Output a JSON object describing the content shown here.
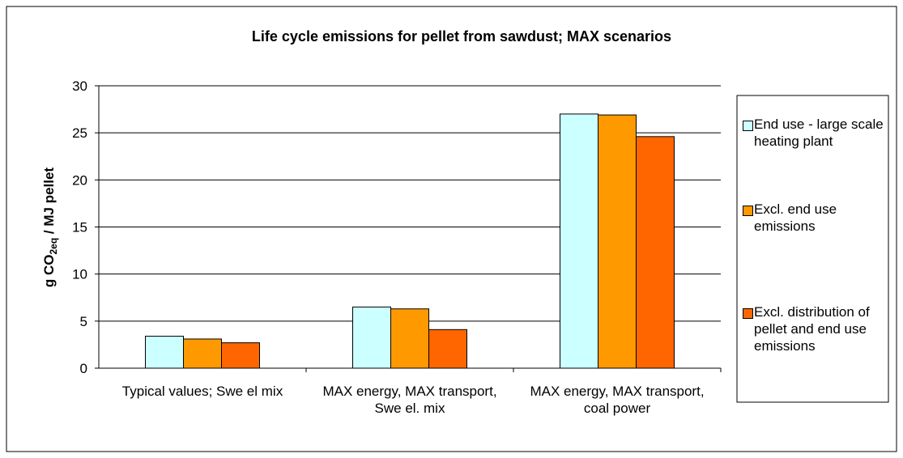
{
  "chart_data": {
    "type": "bar",
    "title": "Life cycle emissions for pellet from sawdust; MAX scenarios",
    "ylabel_parts": [
      "g CO",
      "2eq",
      " / MJ pellet"
    ],
    "categories": [
      "Typical values; Swe el mix",
      "MAX energy, MAX transport, Swe el. mix",
      "MAX energy, MAX transport, coal power"
    ],
    "series": [
      {
        "name": "End use - large scale heating plant",
        "color": "#ccffff",
        "values": [
          3.4,
          6.5,
          27.0
        ]
      },
      {
        "name": "Excl. end use emissions",
        "color": "#ff9900",
        "values": [
          3.1,
          6.3,
          26.9
        ]
      },
      {
        "name": "Excl. distribution of pellet and end use emissions",
        "color": "#ff6600",
        "values": [
          2.7,
          4.1,
          24.6
        ]
      }
    ],
    "ylim": [
      0,
      30
    ],
    "yticks": [
      0,
      5,
      10,
      15,
      20,
      25,
      30
    ],
    "grid": true,
    "legend": "right"
  }
}
